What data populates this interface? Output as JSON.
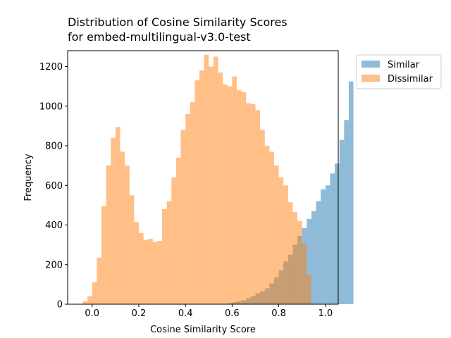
{
  "chart_data": {
    "type": "histogram",
    "title_line1": "Distribution of Cosine Similarity Scores",
    "title_line2": "for embed-multilingual-v3.0-test",
    "xlabel": "Cosine Similarity Score",
    "ylabel": "Frequency",
    "xlim": [
      -0.105,
      1.055
    ],
    "ylim": [
      0,
      1280
    ],
    "xticks": [
      0.0,
      0.2,
      0.4,
      0.6,
      0.8,
      1.0
    ],
    "xtick_labels": [
      "0.0",
      "0.2",
      "0.4",
      "0.6",
      "0.8",
      "1.0"
    ],
    "yticks": [
      0,
      200,
      400,
      600,
      800,
      1000,
      1200
    ],
    "ytick_labels": [
      "0",
      "200",
      "400",
      "600",
      "800",
      "1000",
      "1200"
    ],
    "legend_position": "outside-right",
    "grid": false,
    "bin_width": 0.02,
    "series": [
      {
        "name": "Similar",
        "color": "#1f77b4",
        "opacity": 0.5,
        "bins_start": 0.58,
        "values": [
          5,
          10,
          15,
          20,
          30,
          40,
          55,
          65,
          80,
          105,
          135,
          170,
          215,
          250,
          300,
          345,
          385,
          430,
          470,
          520,
          580,
          600,
          660,
          710,
          830,
          930,
          1125
        ]
      },
      {
        "name": "Dissimilar",
        "color": "#ff7f0e",
        "opacity": 0.5,
        "bins_start": -0.04,
        "values": [
          15,
          40,
          110,
          235,
          495,
          700,
          840,
          895,
          770,
          700,
          550,
          415,
          360,
          325,
          330,
          315,
          320,
          480,
          520,
          640,
          740,
          880,
          960,
          1020,
          1130,
          1180,
          1260,
          1200,
          1250,
          1170,
          1110,
          1100,
          1150,
          1080,
          1070,
          1015,
          1010,
          980,
          880,
          800,
          770,
          700,
          640,
          600,
          515,
          465,
          420,
          305,
          150
        ]
      }
    ]
  }
}
